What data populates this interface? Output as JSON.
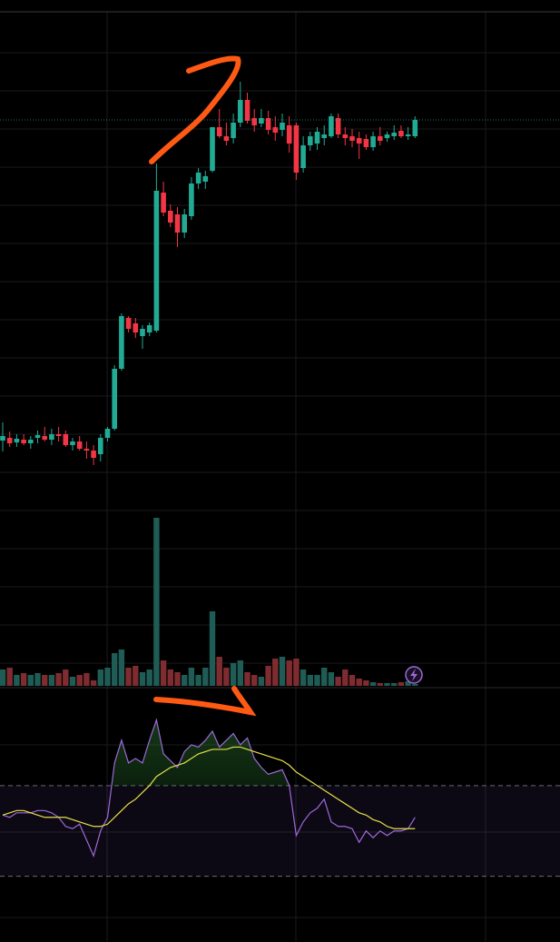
{
  "chart_data": [
    {
      "type": "candlestick",
      "open": [
        275,
        278,
        273,
        276,
        272,
        278,
        280,
        276,
        282,
        282,
        270,
        274,
        266,
        264,
        260,
        278,
        288,
        354,
        410,
        404,
        390,
        394,
        396,
        548,
        528,
        524,
        504,
        522,
        558,
        560,
        572,
        620,
        610,
        608,
        625,
        650,
        630,
        624,
        630,
        620,
        617,
        622,
        622,
        575,
        600,
        602,
        608,
        610,
        630,
        612,
        610,
        608,
        607,
        598,
        610,
        608,
        610,
        616,
        610,
        610
      ],
      "high": [
        295,
        285,
        282,
        282,
        280,
        286,
        290,
        288,
        290,
        286,
        278,
        280,
        274,
        270,
        282,
        290,
        358,
        415,
        412,
        410,
        402,
        405,
        580,
        560,
        535,
        532,
        530,
        565,
        575,
        572,
        620,
        640,
        625,
        635,
        670,
        658,
        640,
        640,
        638,
        632,
        635,
        632,
        625,
        610,
        615,
        620,
        622,
        635,
        635,
        620,
        618,
        615,
        612,
        615,
        620,
        615,
        622,
        622,
        620,
        632
      ],
      "low": [
        263,
        268,
        268,
        270,
        266,
        272,
        274,
        270,
        274,
        268,
        264,
        264,
        255,
        248,
        252,
        274,
        286,
        352,
        394,
        388,
        376,
        390,
        394,
        522,
        510,
        488,
        498,
        518,
        552,
        552,
        570,
        608,
        600,
        602,
        620,
        624,
        615,
        620,
        612,
        605,
        610,
        592,
        562,
        570,
        594,
        595,
        600,
        608,
        608,
        600,
        598,
        585,
        595,
        594,
        600,
        604,
        606,
        608,
        606,
        608
      ],
      "close": [
        280,
        272,
        277,
        272,
        276,
        281,
        276,
        282,
        280,
        270,
        274,
        266,
        264,
        256,
        278,
        288,
        354,
        412,
        398,
        394,
        398,
        402,
        550,
        526,
        515,
        504,
        524,
        558,
        570,
        566,
        620,
        610,
        605,
        625,
        650,
        627,
        622,
        630,
        617,
        614,
        625,
        602,
        570,
        600,
        610,
        615,
        612,
        632,
        612,
        608,
        605,
        602,
        598,
        610,
        605,
        612,
        614,
        610,
        612,
        628
      ],
      "ylim": [
        0,
        745
      ],
      "up_color": "#22ab94",
      "down_color": "#f23645"
    },
    {
      "type": "bar",
      "values": [
        18,
        20,
        12,
        14,
        12,
        14,
        12,
        12,
        14,
        18,
        10,
        12,
        14,
        6,
        18,
        20,
        36,
        40,
        20,
        22,
        15,
        18,
        185,
        28,
        18,
        15,
        12,
        20,
        12,
        20,
        82,
        32,
        20,
        25,
        28,
        15,
        12,
        10,
        22,
        30,
        32,
        28,
        30,
        18,
        12,
        12,
        20,
        15,
        10,
        18,
        12,
        8,
        6,
        4,
        3,
        3,
        3,
        4,
        5,
        2
      ],
      "ylim": [
        0,
        200
      ],
      "up_color": "#1f5c55",
      "down_color": "#7e2c30"
    },
    {
      "type": "line",
      "series": [
        {
          "color": "#9c6ad8",
          "values": [
            57,
            56,
            58,
            58,
            58,
            59,
            59,
            58,
            56,
            52,
            51,
            53,
            46,
            39,
            50,
            56,
            80,
            90,
            80,
            82,
            80,
            90,
            99,
            84,
            81,
            78,
            85,
            88,
            87,
            90,
            94,
            87,
            90,
            93,
            88,
            91,
            82,
            78,
            75,
            76,
            77,
            70,
            48,
            54,
            58,
            60,
            64,
            54,
            52,
            52,
            51,
            45,
            50,
            47,
            50,
            48,
            50,
            50,
            51,
            56
          ]
        },
        {
          "color": "#e6e04a",
          "values": [
            57,
            58,
            59,
            59,
            58,
            57,
            56,
            56,
            56,
            56,
            55,
            54,
            53,
            52,
            52,
            53,
            56,
            59,
            62,
            64,
            67,
            70,
            74,
            76,
            78,
            79,
            80,
            82,
            84,
            85,
            86,
            86,
            86,
            87,
            87,
            86,
            85,
            84,
            83,
            82,
            81,
            79,
            76,
            74,
            72,
            70,
            68,
            66,
            64,
            62,
            60,
            58,
            57,
            55,
            54,
            52,
            51,
            51,
            51,
            51
          ]
        }
      ],
      "ylim": [
        0,
        100
      ],
      "band": [
        30,
        70
      ],
      "band_color": "#7e57c2"
    }
  ]
}
